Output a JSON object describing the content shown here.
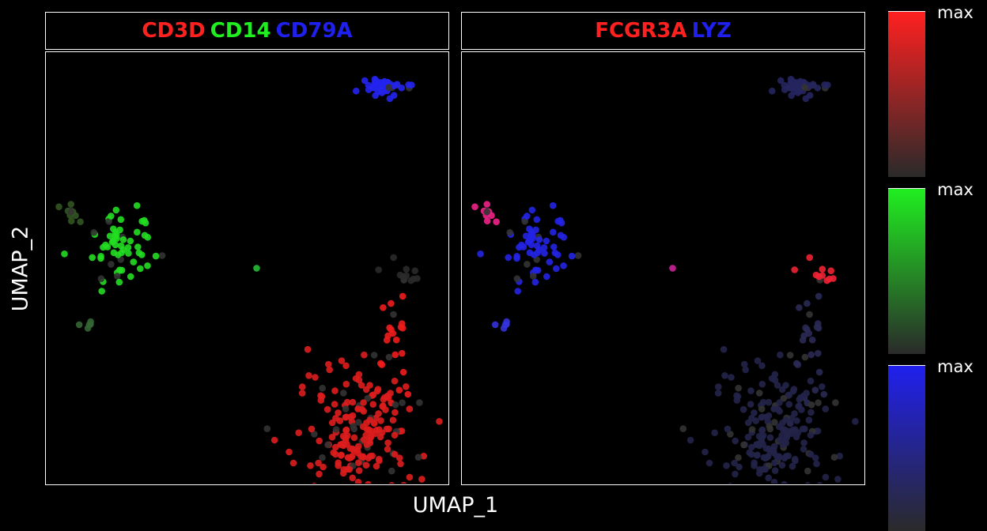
{
  "axes": {
    "xlabel": "UMAP_1",
    "ylabel": "UMAP_2"
  },
  "panels": [
    {
      "id": "p1",
      "features": [
        {
          "name": "CD3D",
          "color": "#ff2020"
        },
        {
          "name": "CD14",
          "color": "#20ee20"
        },
        {
          "name": "CD79A",
          "color": "#2020ee"
        }
      ]
    },
    {
      "id": "p2",
      "features": [
        {
          "name": "FCGR3A",
          "color": "#ff2020"
        },
        {
          "name": "LYZ",
          "color": "#2020ee"
        }
      ]
    }
  ],
  "scales": [
    {
      "label": "max",
      "color": "#ff2020"
    },
    {
      "label": "max",
      "color": "#20ee20"
    },
    {
      "label": "max",
      "color": "#2020ee"
    }
  ],
  "chart_data": {
    "type": "scatter",
    "xlabel": "UMAP_1",
    "ylabel": "UMAP_2",
    "xlim": [
      -10,
      10
    ],
    "ylim": [
      -10,
      10
    ],
    "grid": false,
    "legend_position": "right",
    "clusters": [
      {
        "cx": 6.9,
        "cy": 8.4,
        "sx": 0.55,
        "sy": 0.22,
        "n": 45,
        "p1": "#2323ee",
        "p2": "#25255f"
      },
      {
        "cx": -6.2,
        "cy": 1.0,
        "sx": 0.85,
        "sy": 0.75,
        "n": 60,
        "p1": "#22dd22",
        "p2": "#2424e6"
      },
      {
        "cx": -8.7,
        "cy": 2.5,
        "sx": 0.3,
        "sy": 0.25,
        "n": 10,
        "p1": "#335522",
        "p2": "#ee2288"
      },
      {
        "cx": -7.9,
        "cy": -2.6,
        "sx": 0.3,
        "sy": 0.3,
        "n": 5,
        "p1": "#336633",
        "p2": "#3333dd"
      },
      {
        "cx": 0.5,
        "cy": 0.0,
        "sx": 0.02,
        "sy": 0.02,
        "n": 1,
        "p1": "#22bb33",
        "p2": "#cc2299"
      },
      {
        "cx": 7.8,
        "cy": -0.1,
        "sx": 0.4,
        "sy": 0.3,
        "n": 12,
        "p1": "#2a2a2a",
        "p2": "#ee2233"
      },
      {
        "cx": 7.2,
        "cy": -3.5,
        "sx": 0.45,
        "sy": 1.3,
        "n": 25,
        "p1": "#ee1c1c",
        "p2": "#2a2a55"
      },
      {
        "cx": 5.7,
        "cy": -7.7,
        "sx": 1.4,
        "sy": 1.5,
        "n": 190,
        "p1": "#dd1d1d",
        "p2": "#23234a"
      }
    ]
  }
}
